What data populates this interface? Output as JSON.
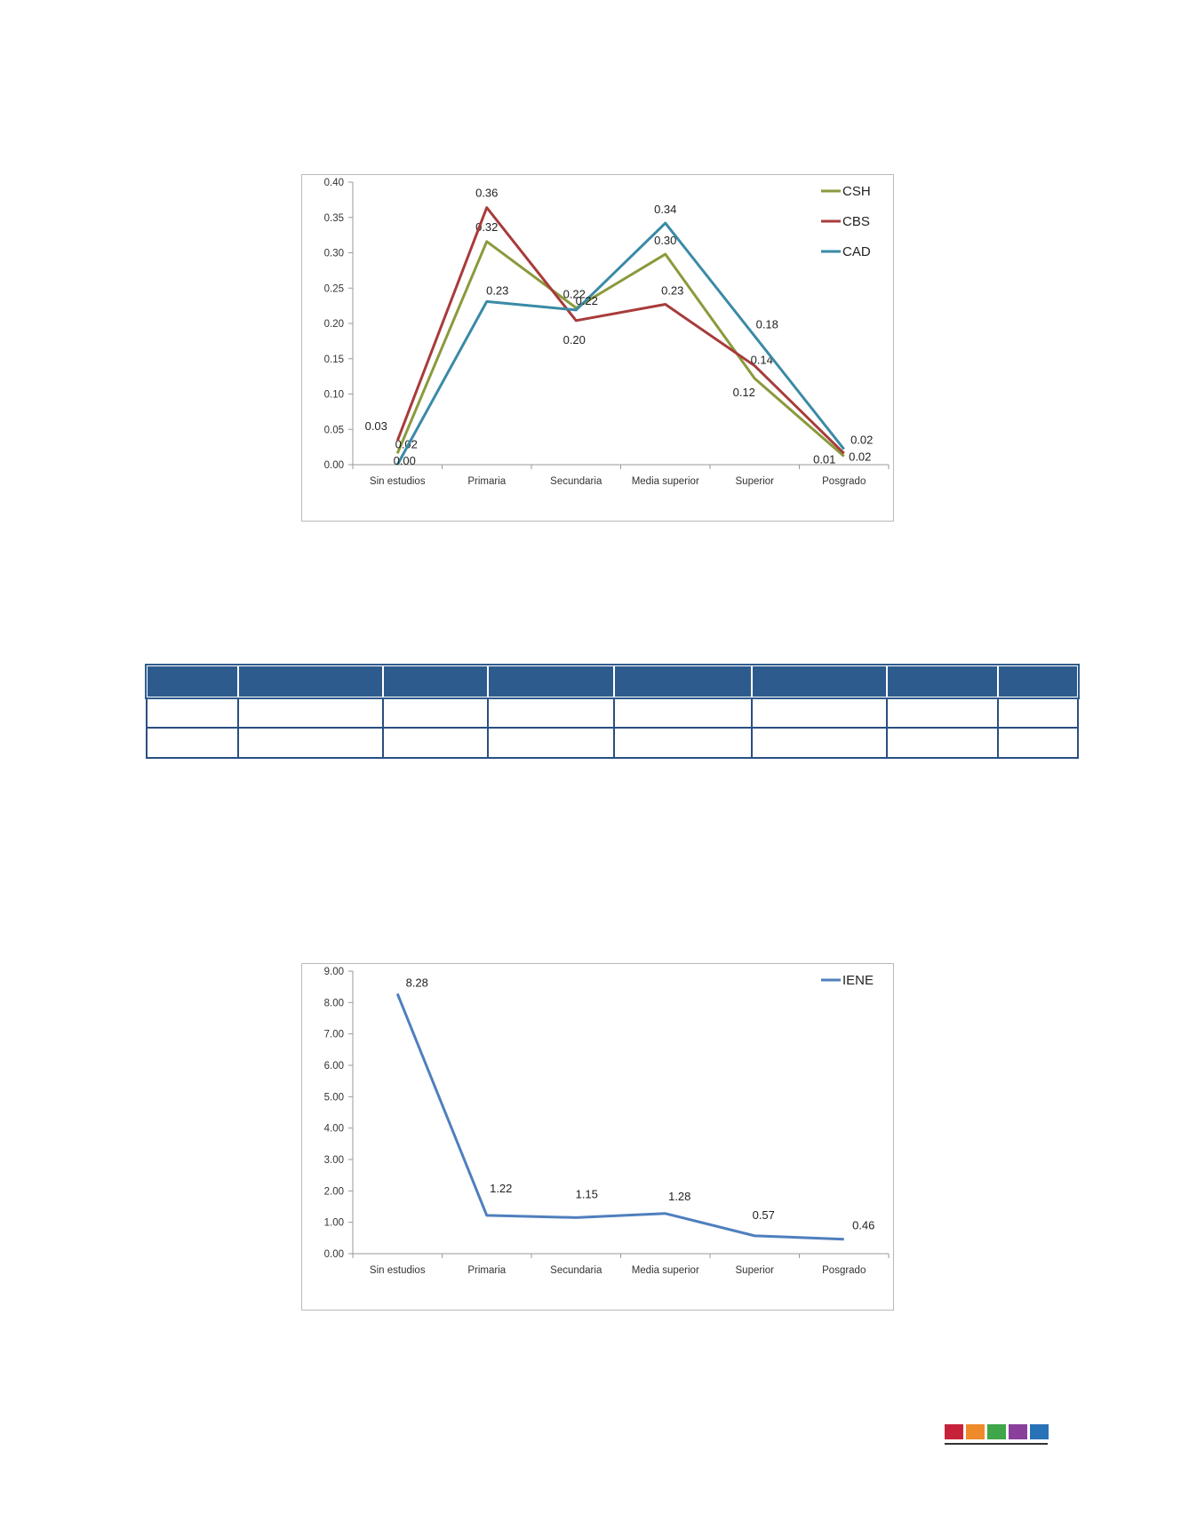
{
  "chart_data": [
    {
      "type": "line",
      "categories": [
        "Sin estudios",
        "Primaria",
        "Secundaria",
        "Media superior",
        "Superior",
        "Posgrado"
      ],
      "ylim": [
        0,
        0.4
      ],
      "yticks": [
        "0.00",
        "0.05",
        "0.10",
        "0.15",
        "0.20",
        "0.25",
        "0.30",
        "0.35",
        "0.40"
      ],
      "legend_position": "top-right",
      "grid": false,
      "series": [
        {
          "name": "CSH",
          "color": "#8a9a3c",
          "values": [
            0.016,
            0.316,
            0.222,
            0.298,
            0.122,
            0.012
          ],
          "labels": [
            "0.02",
            "0.32",
            "0.22",
            "0.30",
            "0.12",
            "0.01"
          ]
        },
        {
          "name": "CBS",
          "color": "#a83b3b",
          "values": [
            0.034,
            0.364,
            0.204,
            0.227,
            0.14,
            0.016
          ],
          "labels": [
            "0.03",
            "0.36",
            "0.20",
            "0.23",
            "0.14",
            "0.02"
          ]
        },
        {
          "name": "CAD",
          "color": "#3a8aa6",
          "values": [
            0.0,
            0.231,
            0.219,
            0.342,
            0.182,
            0.022
          ],
          "labels": [
            "0.00",
            "0.23",
            "0.22",
            "0.34",
            "0.18",
            "0.02"
          ]
        }
      ]
    },
    {
      "type": "line",
      "categories": [
        "Sin estudios",
        "Primaria",
        "Secundaria",
        "Media superior",
        "Superior",
        "Posgrado"
      ],
      "ylim": [
        0,
        9
      ],
      "yticks": [
        "0.00",
        "1.00",
        "2.00",
        "3.00",
        "4.00",
        "5.00",
        "6.00",
        "7.00",
        "8.00",
        "9.00"
      ],
      "legend_position": "top-right",
      "grid": false,
      "series": [
        {
          "name": "IENE",
          "color": "#4f7fbe",
          "values": [
            8.28,
            1.22,
            1.15,
            1.28,
            0.57,
            0.46
          ],
          "labels": [
            "8.28",
            "1.22",
            "1.15",
            "1.28",
            "0.57",
            "0.46"
          ]
        }
      ]
    }
  ],
  "table": {
    "columns": 8,
    "body_rows": 2
  },
  "footer_colors": [
    "#c8223b",
    "#ef8a2a",
    "#3fa64a",
    "#8a3f9c",
    "#2a72b8"
  ]
}
